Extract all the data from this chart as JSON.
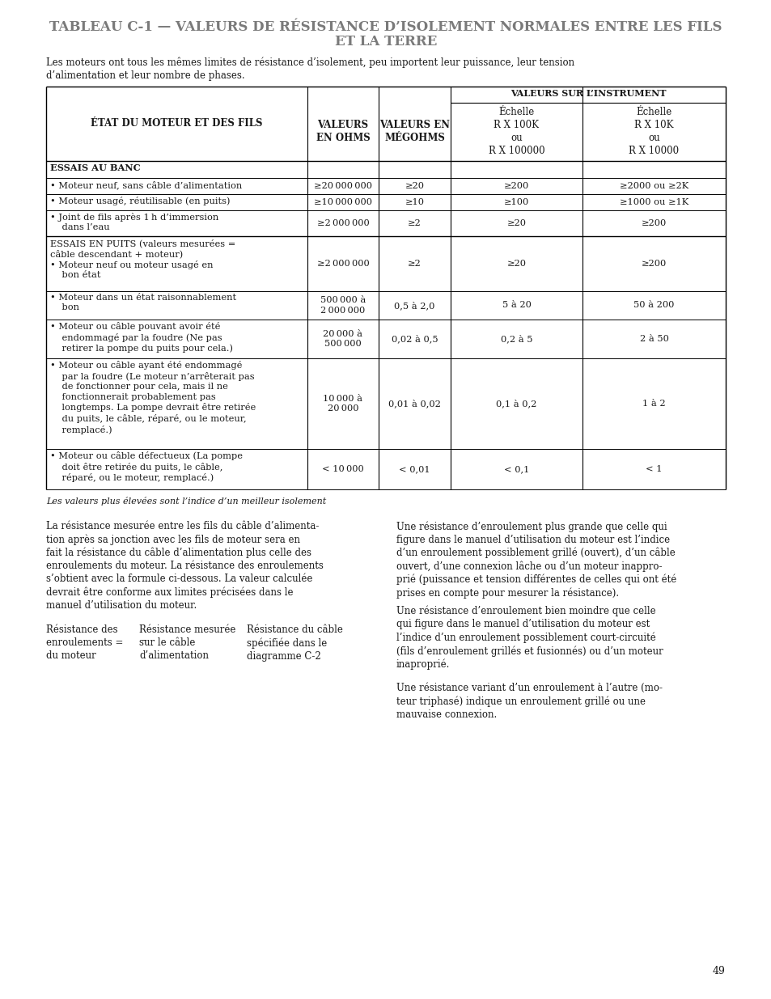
{
  "title_line1": "TABLEAU C-1 — VALEURS DE RÉSISTANCE D’ISOLEMENT NORMALES ENTRE LES FILS",
  "title_line2": "ET LA TERRE",
  "title_color": "#7a7a7a",
  "intro_text": "Les moteurs ont tous les mêmes limites de résistance d’isolement, peu importent leur puissance, leur tension\nd’alimentation et leur nombre de phases.",
  "footnote": "Les valeurs plus élevées sont l’indice d’un meilleur isolement",
  "left_col_text1": "La résistance mesurée entre les fils du câble d’alimenta-\ntion après sa jonction avec les fils de moteur sera en\nfait la résistance du câble d’alimentation plus celle des\nenroulements du moteur. La résistance des enroulements\ns’obtient avec la formule ci-dessous. La valeur calculée\ndevrait être conforme aux limites précisées dans le\nmanuel d’utilisation du moteur.",
  "formula_col1": "Résistance des\nenroulements =\ndu moteur",
  "formula_col2": "Résistance mesurée\nsur le câble\nd’alimentation",
  "formula_sep": "–",
  "formula_col3": "Résistance du câble\nspécifiée dans le\ndiagramme C-2",
  "right_col_text1": "Une résistance d’enroulement plus grande que celle qui\nfigure dans le manuel d’utilisation du moteur est l’indice\nd’un enroulement possiblement grillé (ouvert), d’un câble\nouvert, d’une connexion lâche ou d’un moteur inappro-\nprié (puissance et tension différentes de celles qui ont été\nprises en compte pour mesurer la résistance).",
  "right_col_text2": "Une résistance d’enroulement bien moindre que celle\nqui figure dans le manuel d’utilisation du moteur est\nl’indice d’un enroulement possiblement court-circuité\n(fils d’enroulement grillés et fusionnés) ou d’un moteur\ninaproprié.",
  "right_col_text3": "Une résistance variant d’un enroulement à l’autre (mo-\nteur triphasé) indique un enroulement grillé ou une\nmauvaise connexion.",
  "page_number": "49",
  "bg_color": "#ffffff",
  "text_color": "#1a1a1a",
  "line_color": "#000000"
}
